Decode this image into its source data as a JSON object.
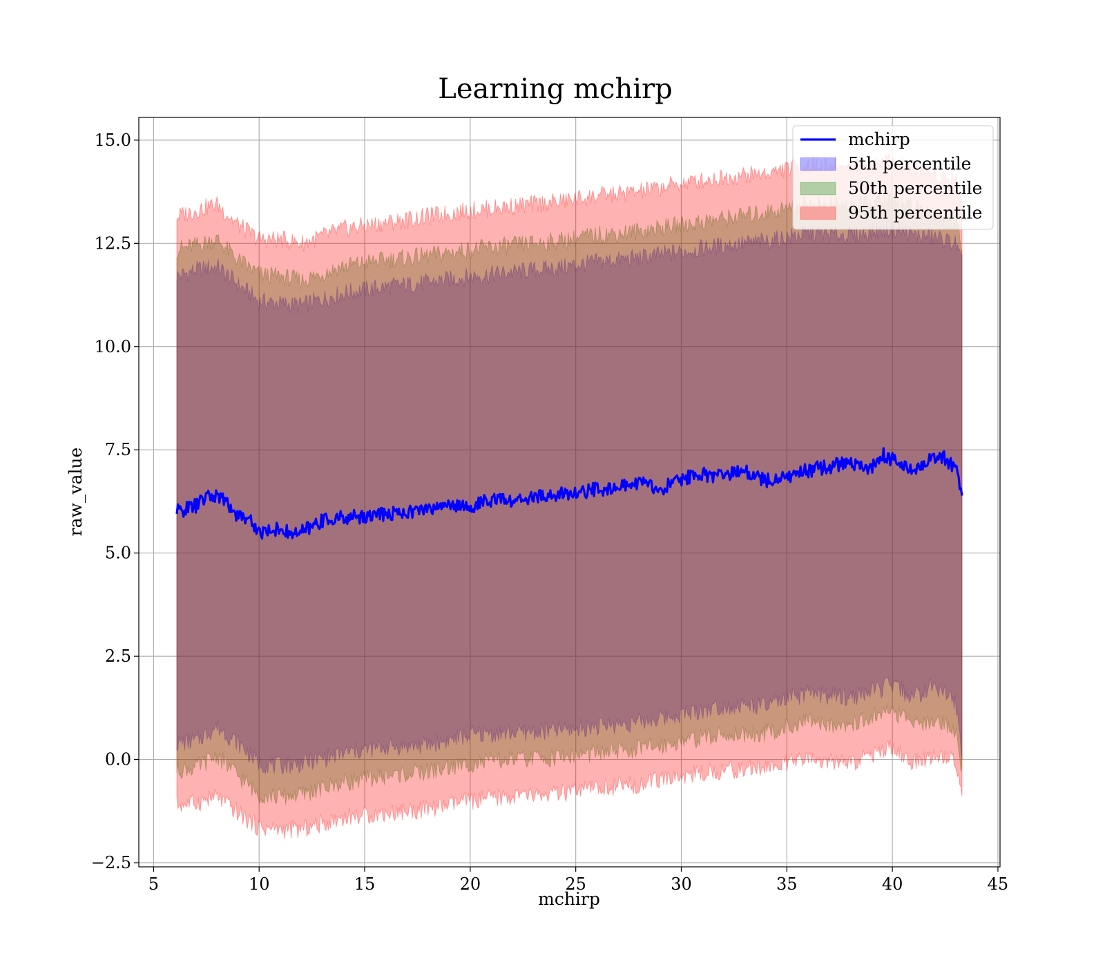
{
  "chart_data": {
    "type": "line",
    "title": "Learning mchirp",
    "xlabel": "mchirp",
    "ylabel": "raw_value",
    "xlim": [
      4.3,
      45.1
    ],
    "ylim": [
      -2.6,
      15.55
    ],
    "xticks": [
      5,
      10,
      15,
      20,
      25,
      30,
      35,
      40,
      45
    ],
    "yticks": [
      -2.5,
      0.0,
      2.5,
      5.0,
      7.5,
      10.0,
      12.5,
      15.0
    ],
    "xtick_labels": [
      "5",
      "10",
      "15",
      "20",
      "25",
      "30",
      "35",
      "40",
      "45"
    ],
    "ytick_labels": [
      "−2.5",
      "0.0",
      "2.5",
      "5.0",
      "7.5",
      "10.0",
      "12.5",
      "15.0"
    ],
    "grid": true,
    "legend_position": "top-right",
    "legend": [
      "mchirp",
      "5th percentile",
      "50th percentile",
      "95th percentile"
    ],
    "series": [
      {
        "name": "mchirp",
        "kind": "line",
        "color": "#0000ff",
        "x": [
          6.1,
          7.0,
          7.5,
          8.0,
          8.5,
          9.0,
          9.5,
          10.0,
          10.5,
          11.0,
          11.5,
          12.0,
          13.0,
          14.0,
          15.0,
          16.0,
          17.0,
          18.0,
          19.0,
          20.0,
          21.0,
          22.0,
          23.0,
          24.0,
          25.0,
          26.0,
          27.0,
          28.0,
          29.0,
          30.0,
          31.0,
          32.0,
          33.0,
          34.0,
          35.0,
          36.0,
          37.0,
          38.0,
          39.0,
          39.5,
          40.0,
          41.0,
          42.0,
          42.5,
          43.0,
          43.3
        ],
        "y": [
          6.0,
          6.15,
          6.35,
          6.4,
          6.2,
          5.9,
          5.85,
          5.5,
          5.55,
          5.6,
          5.45,
          5.5,
          5.8,
          5.85,
          5.9,
          5.95,
          6.0,
          6.05,
          6.2,
          6.1,
          6.3,
          6.25,
          6.35,
          6.4,
          6.45,
          6.55,
          6.6,
          6.7,
          6.55,
          6.8,
          6.9,
          6.85,
          7.0,
          6.75,
          6.85,
          7.0,
          7.1,
          7.2,
          7.05,
          7.4,
          7.25,
          7.0,
          7.35,
          7.3,
          7.05,
          6.35
        ]
      },
      {
        "name": "5th percentile",
        "kind": "band",
        "color": "#0000ff",
        "x": [
          6.1,
          7.0,
          8.0,
          9.0,
          10.0,
          11.0,
          12.0,
          14.0,
          16.0,
          18.0,
          20.0,
          22.0,
          24.0,
          26.0,
          28.0,
          30.0,
          32.0,
          34.0,
          36.0,
          38.0,
          40.0,
          41.0,
          42.0,
          43.0,
          43.3
        ],
        "lower": [
          0.4,
          0.45,
          0.8,
          0.4,
          -0.1,
          -0.15,
          -0.1,
          0.15,
          0.3,
          0.35,
          0.6,
          0.65,
          0.7,
          0.8,
          0.9,
          1.1,
          1.3,
          1.3,
          1.6,
          1.5,
          1.8,
          1.5,
          1.8,
          1.4,
          0.0
        ],
        "upper": [
          11.7,
          11.85,
          11.95,
          11.5,
          11.1,
          11.05,
          11.0,
          11.3,
          11.45,
          11.55,
          11.7,
          11.8,
          11.9,
          12.05,
          12.15,
          12.3,
          12.45,
          12.55,
          12.75,
          12.7,
          12.85,
          12.7,
          12.65,
          12.5,
          12.0
        ]
      },
      {
        "name": "50th percentile",
        "kind": "band",
        "color": "#008000",
        "x": [
          6.1,
          7.0,
          8.0,
          9.0,
          10.0,
          11.0,
          12.0,
          14.0,
          16.0,
          18.0,
          20.0,
          22.0,
          24.0,
          26.0,
          28.0,
          30.0,
          32.0,
          34.0,
          36.0,
          38.0,
          40.0,
          41.0,
          42.0,
          43.0,
          43.3
        ],
        "lower": [
          -0.25,
          -0.2,
          0.1,
          -0.4,
          -0.85,
          -0.9,
          -0.85,
          -0.55,
          -0.4,
          -0.3,
          -0.1,
          0.0,
          0.05,
          0.15,
          0.25,
          0.45,
          0.6,
          0.65,
          0.9,
          0.85,
          1.2,
          0.8,
          1.0,
          0.7,
          -0.3
        ],
        "upper": [
          12.35,
          12.45,
          12.6,
          12.1,
          11.75,
          11.7,
          11.6,
          11.95,
          12.1,
          12.2,
          12.35,
          12.45,
          12.55,
          12.7,
          12.8,
          12.95,
          13.1,
          13.25,
          13.45,
          13.4,
          13.55,
          13.35,
          13.25,
          13.1,
          12.5
        ]
      },
      {
        "name": "95th percentile",
        "kind": "band",
        "color": "#ff0000",
        "x": [
          6.1,
          7.0,
          8.0,
          9.0,
          10.0,
          11.0,
          12.0,
          14.0,
          16.0,
          18.0,
          20.0,
          22.0,
          24.0,
          26.0,
          28.0,
          30.0,
          32.0,
          34.0,
          36.0,
          38.0,
          40.0,
          41.0,
          42.0,
          43.0,
          43.3
        ],
        "lower": [
          -1.1,
          -1.05,
          -0.9,
          -1.3,
          -1.65,
          -1.7,
          -1.7,
          -1.4,
          -1.3,
          -1.2,
          -1.0,
          -0.9,
          -0.85,
          -0.7,
          -0.6,
          -0.4,
          -0.25,
          -0.2,
          0.0,
          -0.1,
          0.3,
          -0.1,
          0.1,
          0.0,
          -0.8
        ],
        "upper": [
          13.15,
          13.3,
          13.45,
          12.95,
          12.6,
          12.6,
          12.5,
          12.85,
          13.0,
          13.15,
          13.3,
          13.4,
          13.5,
          13.65,
          13.75,
          13.95,
          14.1,
          14.2,
          14.4,
          14.35,
          14.5,
          14.3,
          14.2,
          14.05,
          13.4
        ]
      }
    ]
  },
  "style": {
    "background": "#ffffff",
    "band_opacity": 0.3,
    "line_color": "#0000ff"
  }
}
